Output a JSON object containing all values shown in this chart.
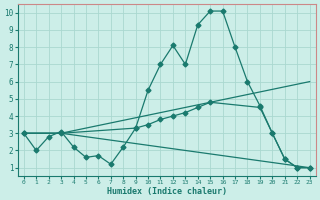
{
  "xlabel": "Humidex (Indice chaleur)",
  "bg_color": "#cceee8",
  "grid_color": "#aad8d0",
  "line_color": "#1a7a6e",
  "spine_color": "#cc8888",
  "xlim": [
    -0.5,
    23.5
  ],
  "ylim": [
    0.5,
    10.5
  ],
  "xticks": [
    0,
    1,
    2,
    3,
    4,
    5,
    6,
    7,
    8,
    9,
    10,
    11,
    12,
    13,
    14,
    15,
    16,
    17,
    18,
    19,
    20,
    21,
    22,
    23
  ],
  "yticks": [
    1,
    2,
    3,
    4,
    5,
    6,
    7,
    8,
    9,
    10
  ],
  "line1_x": [
    0,
    1,
    2,
    3,
    4,
    5,
    6,
    7,
    8,
    9,
    10,
    11,
    12,
    13,
    14,
    15,
    16,
    17,
    18,
    19,
    20,
    21,
    22,
    23
  ],
  "line1_y": [
    3.0,
    2.0,
    2.8,
    3.1,
    2.2,
    1.6,
    1.7,
    1.2,
    2.2,
    3.3,
    5.5,
    7.0,
    8.1,
    7.0,
    9.3,
    10.1,
    10.1,
    8.0,
    6.0,
    4.6,
    3.0,
    1.5,
    1.0,
    1.0
  ],
  "line2_x": [
    0,
    3,
    23
  ],
  "line2_y": [
    3.0,
    3.0,
    6.0
  ],
  "line3_x": [
    0,
    3,
    23
  ],
  "line3_y": [
    3.0,
    3.0,
    1.0
  ],
  "line4_x": [
    0,
    3,
    9,
    10,
    11,
    12,
    13,
    14,
    15,
    19,
    20,
    21,
    22,
    23
  ],
  "line4_y": [
    3.0,
    3.0,
    3.3,
    3.5,
    3.8,
    4.0,
    4.2,
    4.5,
    4.8,
    4.5,
    3.0,
    1.5,
    1.0,
    1.0
  ]
}
